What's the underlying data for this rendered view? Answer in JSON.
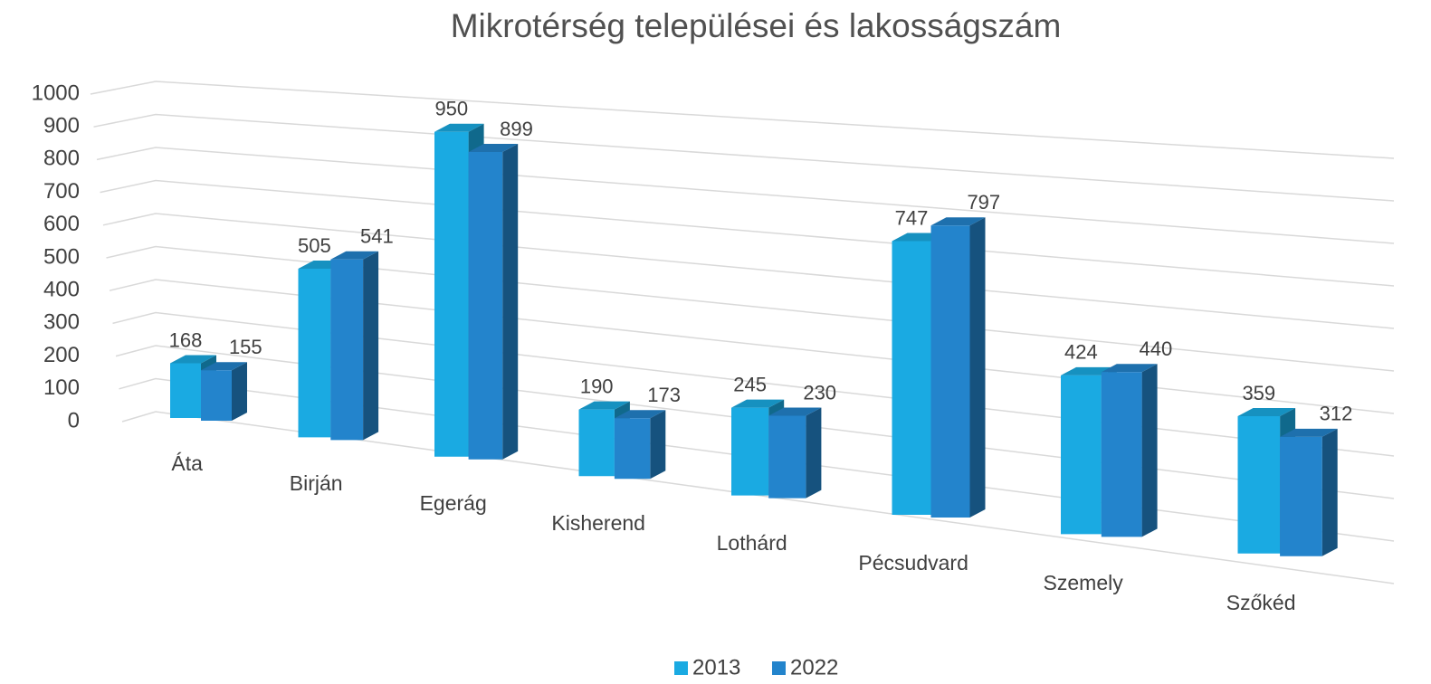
{
  "chart_data": {
    "type": "bar3d",
    "title": "Mikrotérség települései és lakosságszám",
    "categories": [
      "Áta",
      "Birján",
      "Egerág",
      "Kisherend",
      "Lothárd",
      "Pécsudvard",
      "Szemely",
      "Szőkéd"
    ],
    "series": [
      {
        "name": "2013",
        "color": "#1aaae2",
        "values": [
          168,
          505,
          950,
          190,
          245,
          747,
          424,
          359
        ]
      },
      {
        "name": "2022",
        "color": "#2384cc",
        "values": [
          155,
          541,
          899,
          173,
          230,
          797,
          440,
          312
        ]
      }
    ],
    "ylim": [
      0,
      1000
    ],
    "yticks": [
      0,
      100,
      200,
      300,
      400,
      500,
      600,
      700,
      800,
      900,
      1000
    ],
    "grid": true,
    "legend": "bottom"
  }
}
